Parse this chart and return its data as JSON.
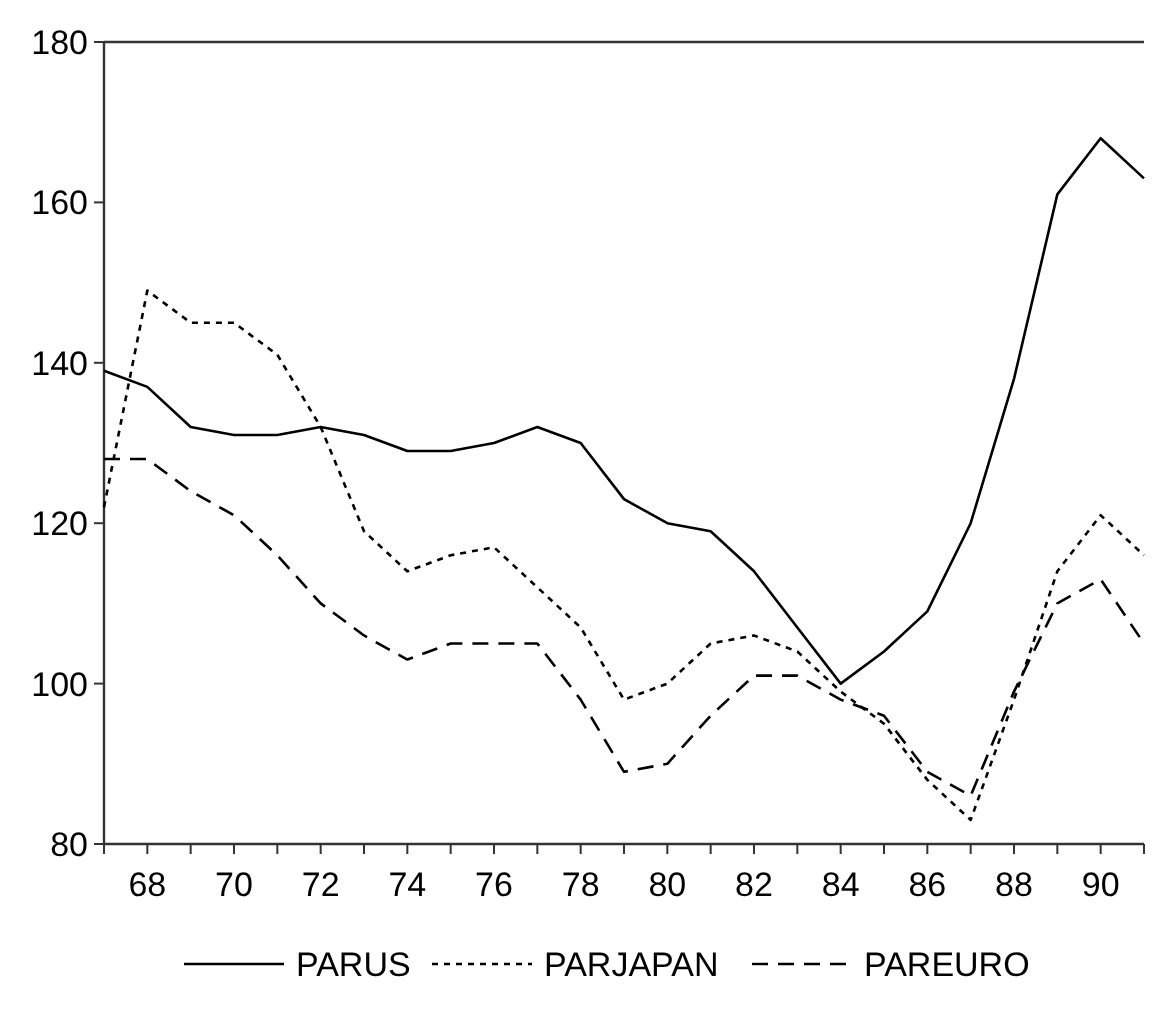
{
  "chart_data": {
    "type": "line",
    "x": [
      67,
      68,
      69,
      70,
      71,
      72,
      73,
      74,
      75,
      76,
      77,
      78,
      79,
      80,
      81,
      82,
      83,
      84,
      85,
      86,
      87,
      88,
      89,
      90,
      91
    ],
    "series": [
      {
        "name": "PARUS",
        "color": "#000000",
        "line_style": "solid",
        "values": [
          139,
          137,
          132,
          131,
          131,
          132,
          131,
          129,
          129,
          130,
          132,
          130,
          123,
          120,
          119,
          114,
          107,
          100,
          104,
          109,
          120,
          138,
          161,
          168,
          163
        ]
      },
      {
        "name": "PARJAPAN",
        "color": "#000000",
        "line_style": "dotted",
        "values": [
          122,
          149,
          145,
          145,
          141,
          132,
          119,
          114,
          116,
          117,
          112,
          107,
          98,
          100,
          105,
          106,
          104,
          99,
          95,
          88,
          83,
          98,
          114,
          121,
          116
        ]
      },
      {
        "name": "PAREURO",
        "color": "#000000",
        "line_style": "dashed",
        "values": [
          128,
          128,
          124,
          121,
          116,
          110,
          106,
          103,
          105,
          105,
          105,
          98,
          89,
          90,
          96,
          101,
          101,
          98,
          96,
          89,
          86,
          99,
          110,
          113,
          105
        ]
      }
    ],
    "xlim": [
      67,
      91
    ],
    "ylim": [
      80,
      180
    ],
    "yticks": [
      80,
      100,
      120,
      140,
      160,
      180
    ],
    "xticks": [
      {
        "value": 67,
        "label": null
      },
      68,
      {
        "value": 69,
        "label": null
      },
      70,
      {
        "value": 71,
        "label": null
      },
      72,
      {
        "value": 73,
        "label": null
      },
      74,
      {
        "value": 75,
        "label": null
      },
      76,
      {
        "value": 77,
        "label": null
      },
      78,
      {
        "value": 79,
        "label": null
      },
      80,
      {
        "value": 81,
        "label": null
      },
      82,
      {
        "value": 83,
        "label": null
      },
      84,
      {
        "value": 85,
        "label": null
      },
      86,
      {
        "value": 87,
        "label": null
      },
      88,
      {
        "value": 89,
        "label": null
      },
      90,
      {
        "value": 91,
        "label": null
      }
    ],
    "legend": "bottom",
    "grid": false
  }
}
